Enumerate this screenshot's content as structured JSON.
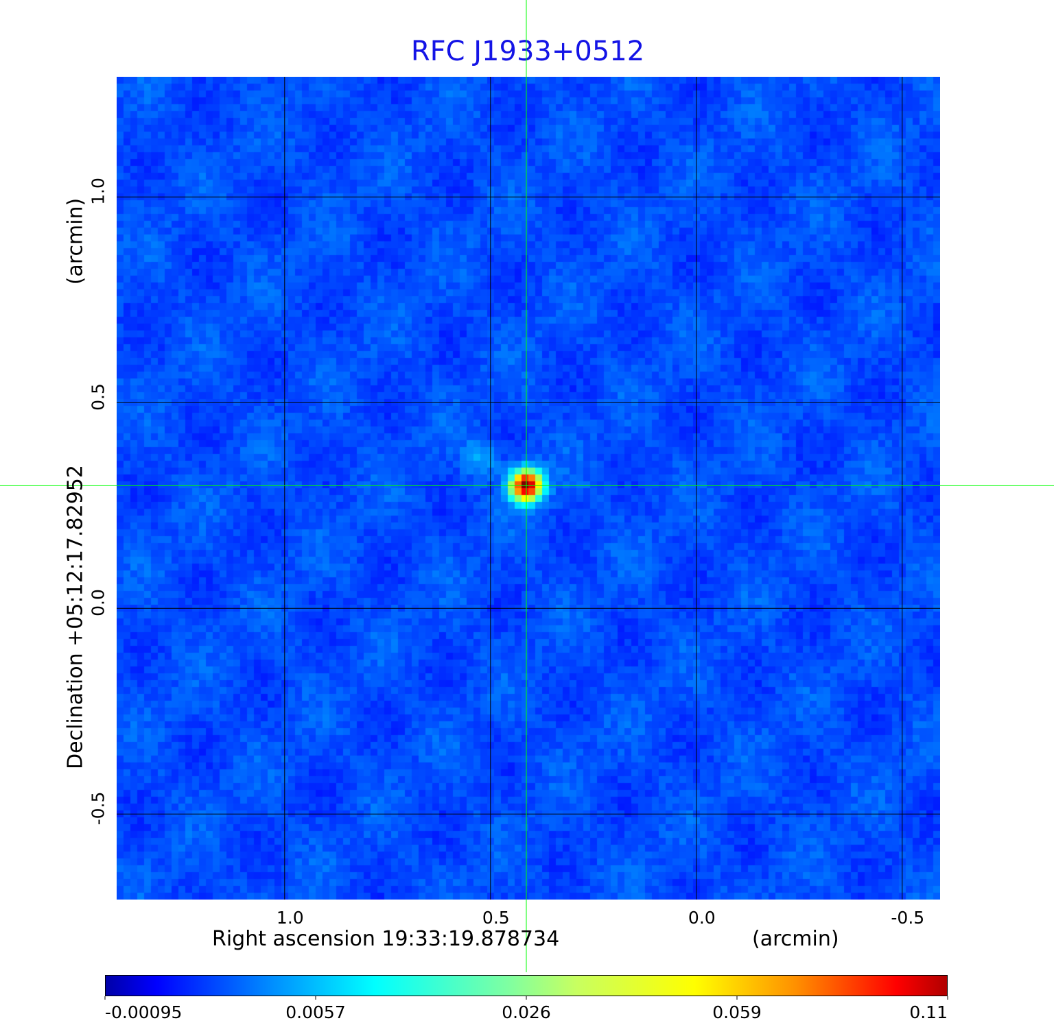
{
  "chart_data": {
    "type": "heatmap",
    "title": "RFC J1933+0512",
    "xlabel": "Right ascension  19:33:19.878734",
    "xunit": "(arcmin)",
    "ylabel": "Declination  +05:12:17.82952",
    "yunit": "(arcmin)",
    "xlim": [
      1.408,
      -0.592
    ],
    "ylim": [
      -0.708,
      1.292
    ],
    "xticks": [
      "1.0",
      "0.5",
      "0.0",
      "-0.5"
    ],
    "xtick_values": [
      1.0,
      0.5,
      0.0,
      -0.5
    ],
    "yticks": [
      "1.0",
      "0.5",
      "0.0",
      "-0.5"
    ],
    "ytick_values": [
      1.0,
      0.5,
      0.0,
      -0.5
    ],
    "grid": true,
    "colormap": "jet",
    "crosshair": {
      "x": 0.413,
      "y": 0.298,
      "color": "#00ff00"
    },
    "source_peak": {
      "x": 0.413,
      "y": 0.298,
      "value": 0.11
    },
    "colorbar": {
      "ticks": [
        "-0.00095",
        "0.0057",
        "0.026",
        "0.059",
        "0.11"
      ],
      "position": "bottom"
    },
    "background_color": "#1a3cf5",
    "title_color": "#1414e6"
  }
}
